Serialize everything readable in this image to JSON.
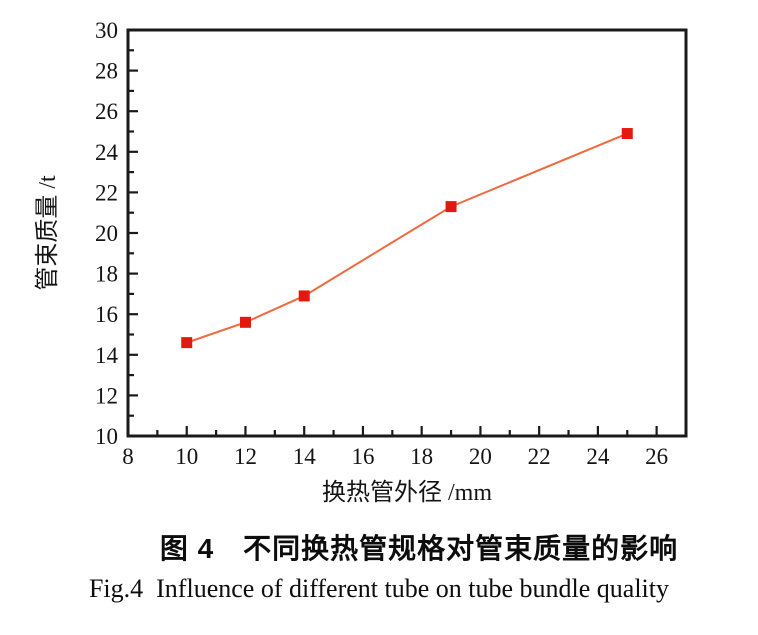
{
  "figure": {
    "caption_zh": "图 4　不同换热管规格对管束质量的影响",
    "caption_en": "Fig.4  Influence of different tube on tube bundle quality"
  },
  "chart_data": {
    "type": "line",
    "x": [
      10,
      12,
      14,
      19,
      25
    ],
    "y": [
      14.6,
      15.6,
      16.9,
      21.3,
      24.9
    ],
    "xlabel": "换热管外径 /mm",
    "ylabel": "管束质量 /t",
    "xlim": [
      8,
      27
    ],
    "ylim": [
      10,
      30
    ],
    "xticks": [
      8,
      10,
      12,
      14,
      16,
      18,
      20,
      22,
      24,
      26
    ],
    "yticks": [
      10,
      12,
      14,
      16,
      18,
      20,
      22,
      24,
      26,
      28,
      30
    ],
    "x_minor_tick_step": 1,
    "y_minor_tick_step": 1,
    "grid": false,
    "legend_position": "none",
    "marker": "square",
    "colors": {
      "line": "#ee6a40",
      "marker": "#e3190f",
      "axis": "#1a1a1a",
      "text": "#141414"
    }
  }
}
